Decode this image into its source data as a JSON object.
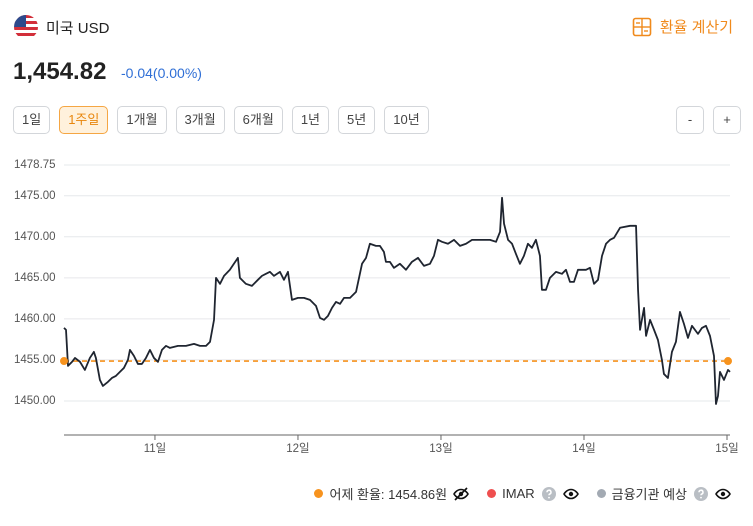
{
  "header": {
    "currency": "미국 USD",
    "calculator": "환율 계산기",
    "price": "1,454.82",
    "change": "-0.04(0.00%)"
  },
  "periods": [
    "1일",
    "1주일",
    "1개월",
    "3개월",
    "6개월",
    "1년",
    "5년",
    "10년"
  ],
  "active_period": 1,
  "zoom": [
    "-",
    "+"
  ],
  "chart_data": {
    "type": "line",
    "color": "#1f2530",
    "x": [
      10.364,
      10.378,
      10.392,
      10.42,
      10.441,
      10.476,
      10.51,
      10.545,
      10.573,
      10.587,
      10.615,
      10.636,
      10.671,
      10.699,
      10.727,
      10.755,
      10.783,
      10.811,
      10.825,
      10.853,
      10.881,
      10.909,
      10.937,
      10.965,
      10.993,
      11.021,
      11.049,
      11.077,
      11.105,
      11.161,
      11.217,
      11.273,
      11.315,
      11.357,
      11.385,
      11.413,
      11.427,
      11.455,
      11.483,
      11.524,
      11.552,
      11.58,
      11.594,
      11.636,
      11.678,
      11.72,
      11.748,
      11.776,
      11.804,
      11.832,
      11.874,
      11.902,
      11.93,
      11.958,
      12.0,
      12.042,
      12.084,
      12.126,
      12.154,
      12.182,
      12.21,
      12.238,
      12.266,
      12.294,
      12.322,
      12.364,
      12.406,
      12.448,
      12.476,
      12.503,
      12.545,
      12.573,
      12.601,
      12.615,
      12.643,
      12.671,
      12.713,
      12.755,
      12.797,
      12.839,
      12.881,
      12.923,
      12.951,
      12.979,
      13.007,
      13.049,
      13.091,
      13.133,
      13.175,
      13.217,
      13.287,
      13.343,
      13.385,
      13.413,
      13.427,
      13.441,
      13.469,
      13.497,
      13.524,
      13.552,
      13.58,
      13.608,
      13.636,
      13.664,
      13.692,
      13.706,
      13.734,
      13.762,
      13.804,
      13.846,
      13.874,
      13.902,
      13.93,
      13.958,
      14.014,
      14.042,
      14.07,
      14.098,
      14.126,
      14.154,
      14.182,
      14.21,
      14.252,
      14.322,
      14.364,
      14.378,
      14.392,
      14.42,
      14.434,
      14.462,
      14.49,
      14.517,
      14.545,
      14.559,
      14.587,
      14.615,
      14.643,
      14.671,
      14.699,
      14.727,
      14.755,
      14.797,
      14.825,
      14.853,
      14.881,
      14.909,
      14.923,
      14.937,
      14.951,
      14.979,
      15.007,
      15.021
    ],
    "values": [
      1458.9,
      1458.66,
      1454.27,
      1454.76,
      1455.24,
      1454.76,
      1453.78,
      1455.24,
      1455.98,
      1455.24,
      1452.56,
      1451.83,
      1452.32,
      1452.8,
      1453.05,
      1453.54,
      1454.02,
      1455.0,
      1456.22,
      1455.49,
      1454.51,
      1454.51,
      1455.24,
      1456.22,
      1455.24,
      1454.76,
      1456.22,
      1456.71,
      1456.46,
      1456.71,
      1456.71,
      1456.95,
      1456.71,
      1456.71,
      1457.2,
      1459.88,
      1465.0,
      1464.27,
      1465.24,
      1465.98,
      1466.71,
      1467.44,
      1465.0,
      1464.27,
      1464.02,
      1464.76,
      1465.24,
      1465.49,
      1465.73,
      1465.24,
      1465.73,
      1464.76,
      1465.73,
      1462.32,
      1462.56,
      1462.56,
      1462.32,
      1461.59,
      1460.12,
      1459.88,
      1460.37,
      1461.34,
      1462.07,
      1461.83,
      1462.56,
      1462.56,
      1463.29,
      1466.71,
      1467.44,
      1469.15,
      1468.9,
      1468.9,
      1468.17,
      1466.95,
      1466.95,
      1466.22,
      1466.71,
      1465.98,
      1466.95,
      1467.44,
      1466.46,
      1466.71,
      1467.68,
      1469.63,
      1469.39,
      1469.15,
      1469.63,
      1468.9,
      1469.15,
      1469.63,
      1469.63,
      1469.63,
      1469.39,
      1470.61,
      1474.76,
      1471.59,
      1469.63,
      1469.15,
      1467.93,
      1466.71,
      1467.68,
      1469.15,
      1468.66,
      1469.63,
      1467.68,
      1463.54,
      1463.54,
      1465.0,
      1465.73,
      1465.49,
      1465.98,
      1464.51,
      1464.51,
      1465.98,
      1465.98,
      1466.22,
      1464.27,
      1464.76,
      1467.68,
      1469.15,
      1469.63,
      1469.88,
      1471.1,
      1471.34,
      1471.34,
      1463.54,
      1458.66,
      1461.34,
      1457.93,
      1459.88,
      1458.66,
      1457.44,
      1455.0,
      1453.29,
      1452.8,
      1455.98,
      1457.2,
      1460.85,
      1459.39,
      1457.68,
      1459.15,
      1458.17,
      1458.9,
      1459.15,
      1457.93,
      1455.49,
      1449.63,
      1450.61,
      1453.54,
      1452.56,
      1453.78,
      1453.54
    ],
    "xlim": [
      10.364,
      15.021
    ],
    "xticks": [
      {
        "value": 11,
        "label": "11일"
      },
      {
        "value": 12,
        "label": "12일"
      },
      {
        "value": 13,
        "label": "13일"
      },
      {
        "value": 14,
        "label": "14일"
      },
      {
        "value": 15,
        "label": "15일"
      }
    ],
    "ylim": [
      1445.85,
      1478.75
    ],
    "yticks": [
      {
        "value": 1450,
        "label": "1450.00"
      },
      {
        "value": 1455,
        "label": "1455.00"
      },
      {
        "value": 1460,
        "label": "1460.00"
      },
      {
        "value": 1465,
        "label": "1465.00"
      },
      {
        "value": 1470,
        "label": "1470.00"
      },
      {
        "value": 1475,
        "label": "1475.00"
      },
      1478.75
    ],
    "grid": true,
    "reference": {
      "value": 1454.86,
      "color": "#f7931e"
    },
    "legend": [
      {
        "label": "어제 환율: 1454.86원",
        "color": "#f7931e"
      },
      {
        "label": "IMAR",
        "color": "#ef4f4f"
      },
      {
        "label": "금융기관 예상",
        "color": "#a3aab3"
      }
    ]
  }
}
